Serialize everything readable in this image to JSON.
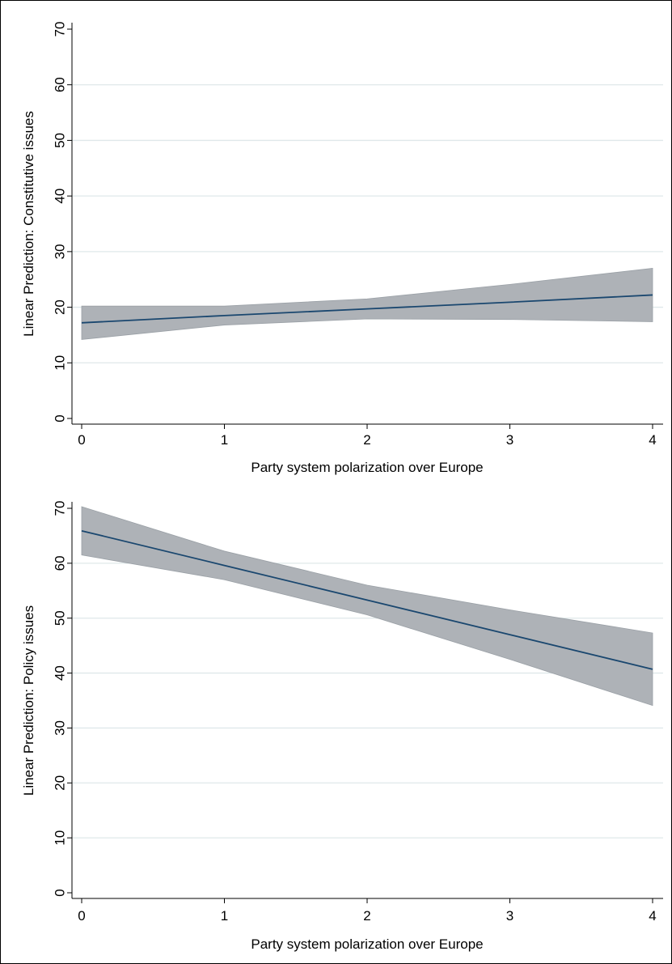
{
  "chart_data": [
    {
      "type": "line",
      "ylabel": "Linear Prediction: Constitutive issues",
      "xlabel": "Party system polarization over Europe",
      "x": [
        0,
        1,
        2,
        3,
        4
      ],
      "series": [
        {
          "values": [
            17.2,
            18.5,
            19.7,
            20.9,
            22.2
          ],
          "ci_lower": [
            14.2,
            16.8,
            17.9,
            17.8,
            17.4
          ],
          "ci_upper": [
            20.2,
            20.2,
            21.5,
            24.1,
            27.0
          ]
        }
      ],
      "xlim": [
        0,
        4
      ],
      "ylim": [
        0,
        70
      ],
      "xticks": [
        "0",
        "1",
        "2",
        "3",
        "4"
      ],
      "yticks": [
        "0",
        "10",
        "20",
        "30",
        "40",
        "50",
        "60",
        "70"
      ],
      "grid": true,
      "line_color": "#1a476f",
      "band_color": "#aeb2b7"
    },
    {
      "type": "line",
      "ylabel": "Linear Prediction: Policy issues",
      "xlabel": "Party system polarization over Europe",
      "x": [
        0,
        1,
        2,
        3,
        4
      ],
      "series": [
        {
          "values": [
            65.9,
            59.6,
            53.3,
            47.0,
            40.7
          ],
          "ci_lower": [
            61.5,
            57.0,
            50.6,
            42.5,
            34.1
          ],
          "ci_upper": [
            70.3,
            62.2,
            56.0,
            51.5,
            47.3
          ]
        }
      ],
      "xlim": [
        0,
        4
      ],
      "ylim": [
        0,
        70
      ],
      "xticks": [
        "0",
        "1",
        "2",
        "3",
        "4"
      ],
      "yticks": [
        "0",
        "10",
        "20",
        "30",
        "40",
        "50",
        "60",
        "70"
      ],
      "grid": true,
      "line_color": "#1a476f",
      "band_color": "#aeb2b7"
    }
  ]
}
